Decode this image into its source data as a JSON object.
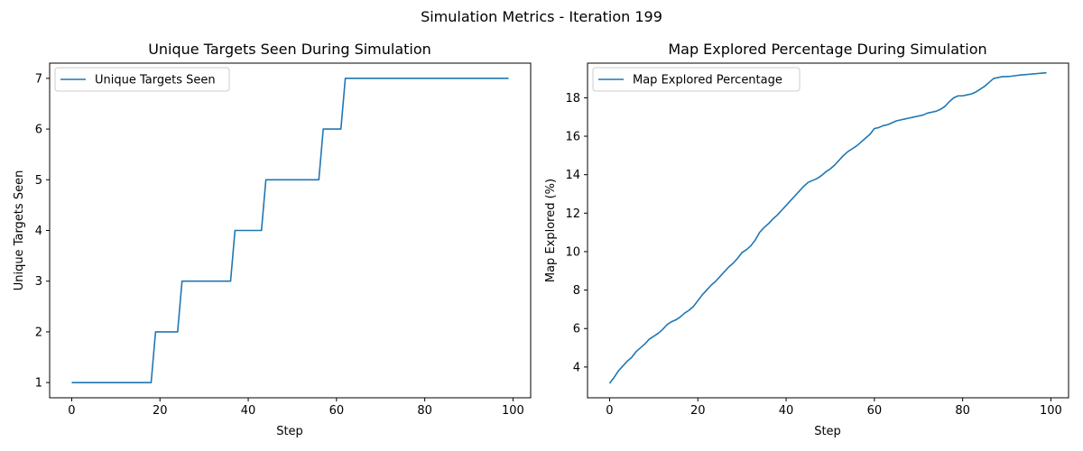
{
  "figure": {
    "suptitle": "Simulation Metrics - Iteration 199"
  },
  "chart_data": [
    {
      "type": "line",
      "title": "Unique Targets Seen During Simulation",
      "xlabel": "Step",
      "ylabel": "Unique Targets Seen",
      "xlim": [
        -5,
        104
      ],
      "ylim": [
        0.7,
        7.3
      ],
      "xticks": [
        0,
        20,
        40,
        60,
        80,
        100
      ],
      "yticks": [
        1,
        2,
        3,
        4,
        5,
        6,
        7
      ],
      "grid": false,
      "legend_position": "upper-left",
      "series": [
        {
          "name": "Unique Targets Seen",
          "color": "#1f77b4",
          "x": [
            0,
            1,
            2,
            3,
            4,
            5,
            6,
            7,
            8,
            9,
            10,
            11,
            12,
            13,
            14,
            15,
            16,
            17,
            18,
            19,
            20,
            21,
            22,
            23,
            24,
            25,
            26,
            27,
            28,
            29,
            30,
            31,
            32,
            33,
            34,
            35,
            36,
            37,
            38,
            39,
            40,
            41,
            42,
            43,
            44,
            45,
            46,
            47,
            48,
            49,
            50,
            51,
            52,
            53,
            54,
            55,
            56,
            57,
            58,
            59,
            60,
            61,
            62,
            63,
            64,
            65,
            66,
            67,
            68,
            69,
            70,
            71,
            72,
            73,
            74,
            75,
            76,
            77,
            78,
            79,
            80,
            81,
            82,
            83,
            84,
            85,
            86,
            87,
            88,
            89,
            90,
            91,
            92,
            93,
            94,
            95,
            96,
            97,
            98,
            99
          ],
          "y": [
            1,
            1,
            1,
            1,
            1,
            1,
            1,
            1,
            1,
            1,
            1,
            1,
            1,
            1,
            1,
            1,
            1,
            1,
            1,
            2,
            2,
            2,
            2,
            2,
            2,
            3,
            3,
            3,
            3,
            3,
            3,
            3,
            3,
            3,
            3,
            3,
            3,
            4,
            4,
            4,
            4,
            4,
            4,
            4,
            5,
            5,
            5,
            5,
            5,
            5,
            5,
            5,
            5,
            5,
            5,
            5,
            5,
            6,
            6,
            6,
            6,
            6,
            7,
            7,
            7,
            7,
            7,
            7,
            7,
            7,
            7,
            7,
            7,
            7,
            7,
            7,
            7,
            7,
            7,
            7,
            7,
            7,
            7,
            7,
            7,
            7,
            7,
            7,
            7,
            7,
            7,
            7,
            7,
            7,
            7,
            7,
            7,
            7,
            7,
            7
          ]
        }
      ]
    },
    {
      "type": "line",
      "title": "Map Explored Percentage During Simulation",
      "xlabel": "Step",
      "ylabel": "Map Explored (%)",
      "xlim": [
        -5,
        104
      ],
      "ylim": [
        2.4,
        19.8
      ],
      "xticks": [
        0,
        20,
        40,
        60,
        80,
        100
      ],
      "yticks": [
        4,
        6,
        8,
        10,
        12,
        14,
        16,
        18
      ],
      "grid": false,
      "legend_position": "upper-left",
      "series": [
        {
          "name": "Map Explored Percentage",
          "color": "#1f77b4",
          "x": [
            0,
            1,
            2,
            3,
            4,
            5,
            6,
            7,
            8,
            9,
            10,
            11,
            12,
            13,
            14,
            15,
            16,
            17,
            18,
            19,
            20,
            21,
            22,
            23,
            24,
            25,
            26,
            27,
            28,
            29,
            30,
            31,
            32,
            33,
            34,
            35,
            36,
            37,
            38,
            39,
            40,
            41,
            42,
            43,
            44,
            45,
            46,
            47,
            48,
            49,
            50,
            51,
            52,
            53,
            54,
            55,
            56,
            57,
            58,
            59,
            60,
            61,
            62,
            63,
            64,
            65,
            66,
            67,
            68,
            69,
            70,
            71,
            72,
            73,
            74,
            75,
            76,
            77,
            78,
            79,
            80,
            81,
            82,
            83,
            84,
            85,
            86,
            87,
            88,
            89,
            90,
            91,
            92,
            93,
            94,
            95,
            96,
            97,
            98,
            99
          ],
          "y": [
            3.15,
            3.45,
            3.8,
            4.05,
            4.3,
            4.5,
            4.8,
            5.0,
            5.2,
            5.45,
            5.6,
            5.75,
            5.95,
            6.2,
            6.35,
            6.45,
            6.6,
            6.8,
            6.95,
            7.15,
            7.45,
            7.75,
            8.0,
            8.25,
            8.45,
            8.7,
            8.95,
            9.2,
            9.4,
            9.65,
            9.95,
            10.1,
            10.3,
            10.6,
            11.0,
            11.25,
            11.45,
            11.7,
            11.9,
            12.15,
            12.4,
            12.65,
            12.9,
            13.15,
            13.4,
            13.6,
            13.7,
            13.8,
            13.95,
            14.15,
            14.3,
            14.5,
            14.75,
            15.0,
            15.2,
            15.35,
            15.5,
            15.7,
            15.9,
            16.1,
            16.4,
            16.45,
            16.55,
            16.6,
            16.7,
            16.8,
            16.85,
            16.9,
            16.95,
            17.0,
            17.05,
            17.1,
            17.2,
            17.25,
            17.3,
            17.4,
            17.55,
            17.8,
            18.0,
            18.1,
            18.1,
            18.15,
            18.2,
            18.3,
            18.45,
            18.6,
            18.8,
            19.0,
            19.05,
            19.1,
            19.1,
            19.12,
            19.15,
            19.18,
            19.2,
            19.22,
            19.24,
            19.26,
            19.28,
            19.3
          ]
        }
      ]
    }
  ]
}
